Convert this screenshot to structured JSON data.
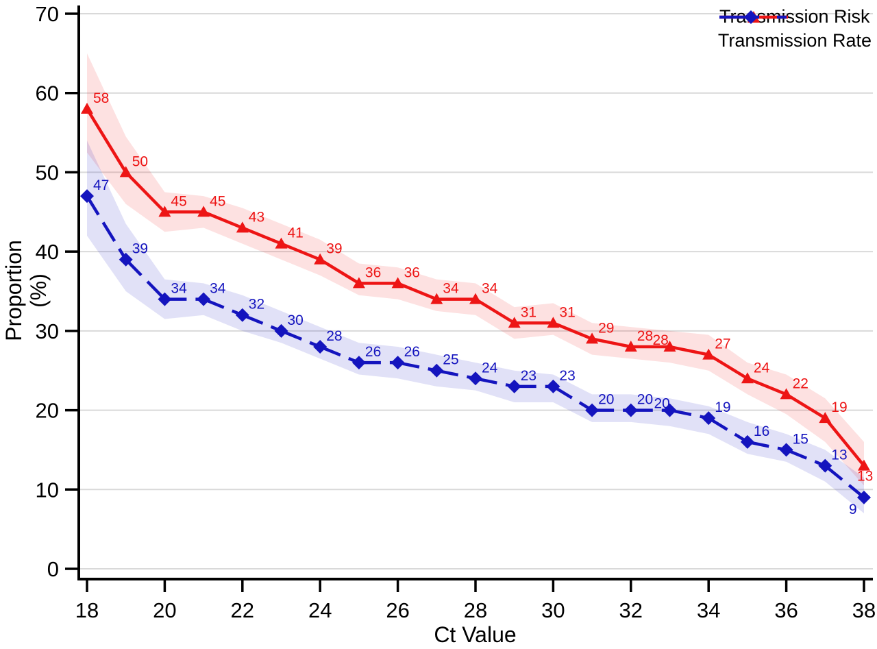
{
  "chart_data": {
    "type": "line",
    "title": "",
    "xlabel": "Ct Value",
    "ylabel": "Proportion (%)",
    "x": [
      18,
      19,
      20,
      21,
      22,
      23,
      24,
      25,
      26,
      27,
      28,
      29,
      30,
      31,
      32,
      33,
      34,
      35,
      36,
      37,
      38
    ],
    "xticks": [
      18,
      20,
      22,
      24,
      26,
      28,
      30,
      32,
      34,
      36,
      38
    ],
    "yticks": [
      0,
      10,
      20,
      30,
      40,
      50,
      60,
      70
    ],
    "xlim": [
      18,
      38
    ],
    "ylim": [
      0,
      70
    ],
    "grid": "horizontal",
    "grid_color": "#d9d9d9",
    "axis_color": "#000000",
    "legend_position": "top-right",
    "series": [
      {
        "name": "Transmission Risk",
        "color": "#ed1515",
        "marker": "triangle",
        "line_style": "solid",
        "values": [
          58,
          50,
          45,
          45,
          43,
          41,
          39,
          36,
          36,
          34,
          34,
          31,
          31,
          29,
          28,
          28,
          27,
          24,
          22,
          19,
          13
        ],
        "band": {
          "upper": [
            65,
            54.5,
            47.5,
            47,
            45.5,
            43.5,
            41.5,
            38.5,
            38,
            36.5,
            36,
            33,
            33.5,
            31,
            30.5,
            30,
            29.5,
            26,
            24.5,
            21.5,
            16
          ],
          "lower": [
            52.5,
            46,
            42.5,
            43,
            41,
            39,
            37,
            34.5,
            34,
            32.5,
            32,
            29,
            29.5,
            27,
            26.5,
            26,
            25,
            22,
            19.5,
            16,
            10.5
          ]
        },
        "label_overrides": {
          "15": {
            "dx": -25,
            "dy": -3
          },
          "20": {
            "dx": -10,
            "dy": 22
          }
        }
      },
      {
        "name": "Transmission Rate",
        "color": "#1414be",
        "marker": "diamond",
        "line_style": "dash",
        "values": [
          47,
          39,
          34,
          34,
          32,
          30,
          28,
          26,
          26,
          25,
          24,
          23,
          23,
          20,
          20,
          20,
          19,
          16,
          15,
          13,
          9
        ],
        "band": {
          "upper": [
            54,
            43.5,
            36.5,
            36,
            34.5,
            32.5,
            30.5,
            28.5,
            28,
            27,
            26,
            25,
            24.5,
            22,
            22,
            21.5,
            20.5,
            18.5,
            17,
            15,
            11.5
          ],
          "lower": [
            42,
            35,
            31.5,
            32,
            30,
            28.5,
            26.5,
            24.5,
            24,
            23,
            22.5,
            21,
            21,
            18.5,
            18.5,
            18,
            17,
            14.5,
            13.5,
            11,
            7
          ]
        },
        "label_overrides": {
          "15": {
            "dx": -23,
            "dy": -3
          },
          "20": {
            "dx": -22,
            "dy": 24
          }
        }
      }
    ]
  }
}
